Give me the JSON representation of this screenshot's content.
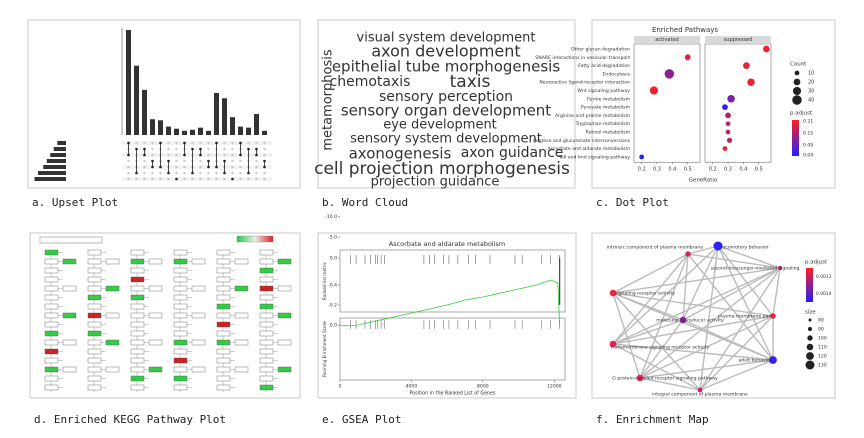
{
  "panels": [
    {
      "caption": "a. Upset Plot",
      "set_sizes": [
        25,
        35,
        45,
        55,
        65,
        80,
        90
      ],
      "intersection_sizes": [
        100,
        66,
        43,
        15,
        14,
        8,
        6,
        4,
        5,
        7,
        4,
        40,
        35,
        17,
        8,
        7,
        20,
        4
      ]
    },
    {
      "caption": "b. Word Cloud",
      "words": [
        {
          "text": "metamorphosis",
          "color": "#c9a227"
        },
        {
          "text": "visual system development",
          "color": "#c9a227"
        },
        {
          "text": "axon development",
          "color": "#666666"
        },
        {
          "text": "epithelial tube morphogenesis",
          "color": "#666666"
        },
        {
          "text": "chemotaxis",
          "color": "#c9a227"
        },
        {
          "text": "taxis",
          "color": "#666666"
        },
        {
          "text": "sensory perception",
          "color": "#c9a227"
        },
        {
          "text": "sensory organ development",
          "color": "#c9a227"
        },
        {
          "text": "eye development",
          "color": "#c9a227"
        },
        {
          "text": "sensory system development",
          "color": "#c9a227"
        },
        {
          "text": "axonogenesis",
          "color": "#666666"
        },
        {
          "text": "axon guidance",
          "color": "#c9a227"
        },
        {
          "text": "cell projection morphogenesis",
          "color": "#666666"
        },
        {
          "text": "projection guidance",
          "color": "#c9a227"
        }
      ]
    },
    {
      "caption": "c. Dot Plot",
      "title": "Enriched Pathways",
      "facets": [
        "activated",
        "suppressed"
      ],
      "x_label": "GeneRatio",
      "xticks": [
        0.2,
        0.3,
        0.4,
        0.5
      ],
      "pathways": [
        {
          "name": "Other glycan degradation",
          "facet": 1,
          "gene_ratio": 0.55,
          "count": 20,
          "p_adjust": 0.2
        },
        {
          "name": "SNARE interactions in vesicular transport",
          "facet": 0,
          "gene_ratio": 0.5,
          "count": 15,
          "p_adjust": 0.19
        },
        {
          "name": "Fatty acid degradation",
          "facet": 1,
          "gene_ratio": 0.42,
          "count": 20,
          "p_adjust": 0.19
        },
        {
          "name": "Endocytosis",
          "facet": 0,
          "gene_ratio": 0.38,
          "count": 40,
          "p_adjust": 0.12
        },
        {
          "name": "Neuroactive ligand-receptor interaction",
          "facet": 1,
          "gene_ratio": 0.45,
          "count": 25,
          "p_adjust": 0.2
        },
        {
          "name": "Wnt signaling pathway",
          "facet": 0,
          "gene_ratio": 0.28,
          "count": 30,
          "p_adjust": 0.2
        },
        {
          "name": "Purine metabolism",
          "facet": 1,
          "gene_ratio": 0.32,
          "count": 25,
          "p_adjust": 0.11
        },
        {
          "name": "Pyruvate metabolism",
          "facet": 1,
          "gene_ratio": 0.28,
          "count": 15,
          "p_adjust": 0.05
        },
        {
          "name": "Arginine and proline metabolism",
          "facet": 1,
          "gene_ratio": 0.3,
          "count": 15,
          "p_adjust": 0.15
        },
        {
          "name": "Tryptophan metabolism",
          "facet": 1,
          "gene_ratio": 0.3,
          "count": 10,
          "p_adjust": 0.17
        },
        {
          "name": "Retinol metabolism",
          "facet": 1,
          "gene_ratio": 0.3,
          "count": 10,
          "p_adjust": 0.16
        },
        {
          "name": "Pentose and glucuronate interconversions",
          "facet": 1,
          "gene_ratio": 0.31,
          "count": 12,
          "p_adjust": 0.16
        },
        {
          "name": "Ascorbate and aldarate metabolism",
          "facet": 1,
          "gene_ratio": 0.28,
          "count": 10,
          "p_adjust": 0.2
        },
        {
          "name": "Toll and Imd signaling pathway",
          "facet": 0,
          "gene_ratio": 0.2,
          "count": 10,
          "p_adjust": 0.04
        }
      ],
      "count_legend": {
        "title": "Count",
        "values": [
          10,
          20,
          30,
          40
        ]
      },
      "color_legend": {
        "title": "p.adjust",
        "ticks": [
          0.21,
          0.15,
          0.09,
          0.04
        ]
      }
    },
    {
      "caption": "d. Enriched KEGG Pathway Plot"
    },
    {
      "caption": "e. GSEA Plot",
      "title": "Ascorbate and aldarate metabolism",
      "x_label": "Position in the Ranked List of Genes",
      "xticks": [
        0,
        4000,
        8000,
        12000
      ],
      "metric_label": "Ranked list metric",
      "metric_ticks": [
        {
          "value": 0,
          "label": "0.0"
        },
        {
          "value": -5,
          "label": "-5.0"
        },
        {
          "value": -10,
          "label": "-10.0"
        }
      ],
      "score_label": "Running Enrichment Score",
      "score_ticks": [
        {
          "value": 0,
          "label": "0.0"
        },
        -0.2,
        -0.4
      ],
      "hits": [
        600,
        900,
        1400,
        1700,
        2000,
        2100,
        2300,
        2500,
        4700,
        5000,
        5300,
        5800,
        6100,
        6600,
        7200,
        7600,
        8400,
        9800,
        10200,
        11300,
        11800,
        12300
      ],
      "curve": {
        "x": [
          0,
          500,
          1000,
          2000,
          3000,
          4000,
          5000,
          6000,
          7000,
          8000,
          9000,
          10000,
          11000,
          11800,
          12200,
          12300
        ],
        "y": [
          0,
          0.01,
          0,
          -0.04,
          -0.08,
          -0.12,
          -0.16,
          -0.2,
          -0.25,
          -0.28,
          -0.32,
          -0.36,
          -0.4,
          -0.45,
          -0.42,
          0
        ]
      }
    },
    {
      "caption": "f. Enrichment Map",
      "nodes": [
        {
          "label": "intrinsic component of plasma membrane",
          "p_adjust": 0.00128,
          "size": 100
        },
        {
          "label": "locomotory behavior",
          "p_adjust": 0.00144,
          "size": 130
        },
        {
          "label": "second-messenger-mediated signaling",
          "p_adjust": 0.00131,
          "size": 90
        },
        {
          "label": "signaling receptor activity",
          "p_adjust": 0.00126,
          "size": 110
        },
        {
          "label": "plasma membrane part",
          "p_adjust": 0.00126,
          "size": 100
        },
        {
          "label": "molecular transducer activity",
          "p_adjust": 0.00135,
          "size": 110
        },
        {
          "label": "transmembrane signaling receptor activity",
          "p_adjust": 0.00127,
          "size": 110
        },
        {
          "label": "adult behavior",
          "p_adjust": 0.00143,
          "size": 120
        },
        {
          "label": "G protein-coupled receptor signaling pathway",
          "p_adjust": 0.00127,
          "size": 110
        },
        {
          "label": "integral component of plasma membrane",
          "p_adjust": 0.0013,
          "size": 95
        }
      ],
      "color_legend": {
        "title": "p.adjust",
        "ticks": [
          0.0013,
          0.0014
        ]
      },
      "size_legend": {
        "title": "size",
        "values": [
          80,
          90,
          100,
          110,
          120,
          130
        ]
      }
    }
  ]
}
